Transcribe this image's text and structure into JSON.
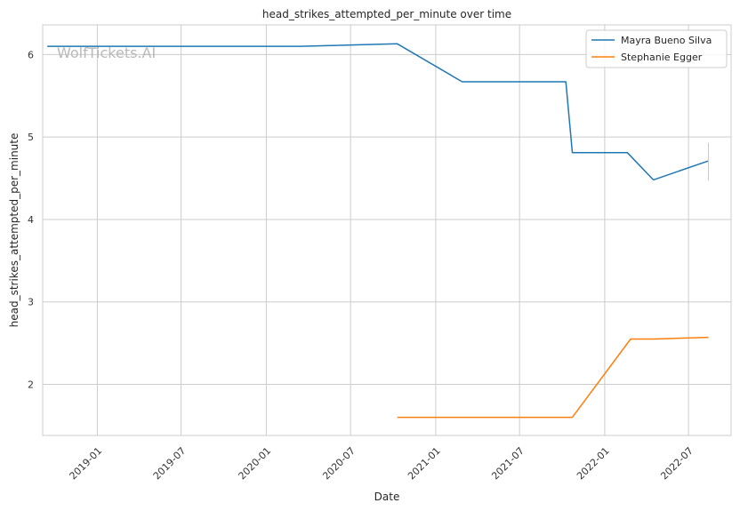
{
  "chart_data": {
    "type": "line",
    "title": "head_strikes_attempted_per_minute over time",
    "xlabel": "Date",
    "ylabel": "head_strikes_attempted_per_minute",
    "x_type": "date",
    "xlim": [
      "2018-09-05",
      "2022-10-01"
    ],
    "ylim": [
      1.38,
      6.36
    ],
    "x_ticks": [
      "2019-01-01",
      "2019-07-01",
      "2020-01-01",
      "2020-07-01",
      "2021-01-01",
      "2021-07-01",
      "2022-01-01",
      "2022-07-01"
    ],
    "x_tick_labels": [
      "2019-01",
      "2019-07",
      "2020-01",
      "2020-07",
      "2021-01",
      "2021-07",
      "2022-01",
      "2022-07"
    ],
    "y_ticks": [
      2,
      3,
      4,
      5,
      6
    ],
    "y_tick_labels": [
      "2",
      "3",
      "4",
      "5",
      "6"
    ],
    "grid": true,
    "legend_position": "top-right",
    "watermark": "WolfTickets.AI",
    "series": [
      {
        "name": "Mayra Bueno Silva",
        "color": "#1f77b4",
        "points": [
          [
            "2018-09-15",
            6.1
          ],
          [
            "2020-03-14",
            6.1
          ],
          [
            "2020-10-10",
            6.13
          ],
          [
            "2021-02-27",
            5.67
          ],
          [
            "2021-10-09",
            5.67
          ],
          [
            "2021-10-23",
            4.81
          ],
          [
            "2022-02-19",
            4.81
          ],
          [
            "2022-04-16",
            4.48
          ],
          [
            "2022-08-13",
            4.71
          ]
        ],
        "error_bar": {
          "x": "2022-08-13",
          "low": 4.47,
          "high": 4.93
        }
      },
      {
        "name": "Stephanie Egger",
        "color": "#ff7f0e",
        "points": [
          [
            "2020-10-10",
            1.6
          ],
          [
            "2021-10-23",
            1.6
          ],
          [
            "2022-02-26",
            2.55
          ],
          [
            "2022-04-16",
            2.55
          ],
          [
            "2022-08-13",
            2.57
          ]
        ]
      }
    ]
  }
}
